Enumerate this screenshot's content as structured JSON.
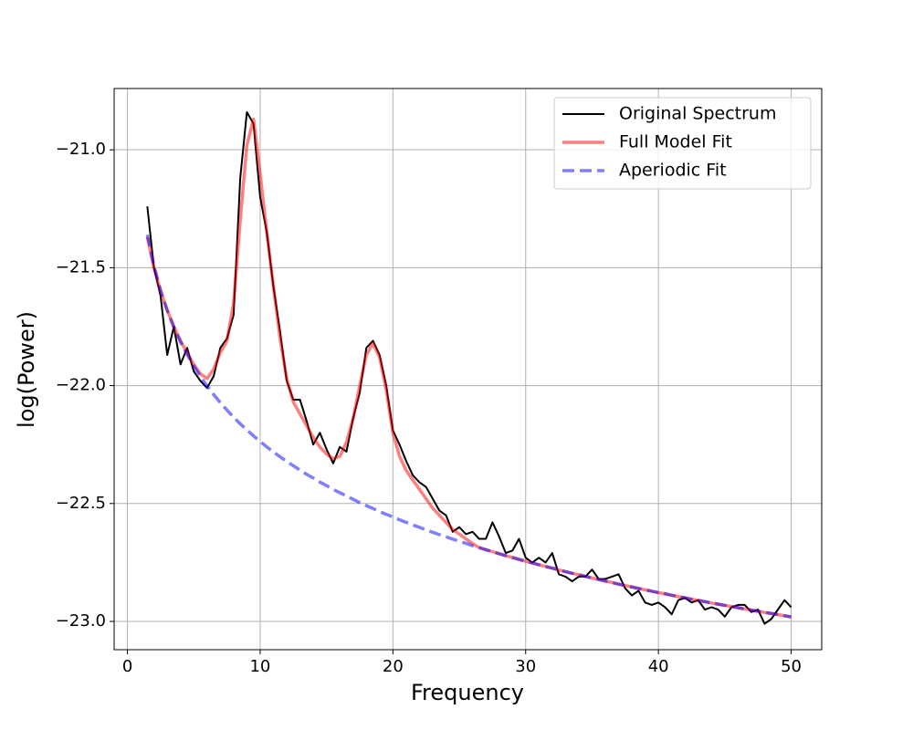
{
  "chart_data": {
    "type": "line",
    "xlabel": "Frequency",
    "ylabel": "log(Power)",
    "x": [
      1.5,
      2,
      2.5,
      3,
      3.5,
      4,
      4.5,
      5,
      5.5,
      6,
      6.5,
      7,
      7.5,
      8,
      8.5,
      9,
      9.5,
      10,
      10.5,
      11,
      11.5,
      12,
      12.5,
      13,
      13.5,
      14,
      14.5,
      15,
      15.5,
      16,
      16.5,
      17,
      17.5,
      18,
      18.5,
      19,
      19.5,
      20,
      20.5,
      21,
      21.5,
      22,
      22.5,
      23,
      23.5,
      24,
      24.5,
      25,
      25.5,
      26,
      26.5,
      27,
      27.5,
      28,
      28.5,
      29,
      29.5,
      30,
      30.5,
      31,
      31.5,
      32,
      32.5,
      33,
      33.5,
      34,
      34.5,
      35,
      35.5,
      36,
      36.5,
      37,
      37.5,
      38,
      38.5,
      39,
      39.5,
      40,
      40.5,
      41,
      41.5,
      42,
      42.5,
      43,
      43.5,
      44,
      44.5,
      45,
      45.5,
      46,
      46.5,
      47,
      47.5,
      48,
      48.5,
      49,
      49.5,
      50
    ],
    "series": [
      {
        "name": "Original Spectrum",
        "color": "#000000",
        "alpha": 1,
        "linewidth": 2,
        "linestyle": "solid",
        "values": [
          -21.24,
          -21.5,
          -21.62,
          -21.87,
          -21.75,
          -21.91,
          -21.84,
          -21.94,
          -21.98,
          -22.01,
          -21.96,
          -21.84,
          -21.8,
          -21.7,
          -21.12,
          -20.84,
          -20.89,
          -21.2,
          -21.35,
          -21.58,
          -21.77,
          -21.98,
          -22.06,
          -22.06,
          -22.15,
          -22.25,
          -22.2,
          -22.27,
          -22.33,
          -22.26,
          -22.28,
          -22.14,
          -22.03,
          -21.84,
          -21.81,
          -21.87,
          -22.0,
          -22.19,
          -22.25,
          -22.32,
          -22.38,
          -22.41,
          -22.43,
          -22.48,
          -22.53,
          -22.55,
          -22.62,
          -22.6,
          -22.63,
          -22.62,
          -22.65,
          -22.65,
          -22.58,
          -22.64,
          -22.71,
          -22.7,
          -22.65,
          -22.73,
          -22.75,
          -22.73,
          -22.75,
          -22.71,
          -22.8,
          -22.81,
          -22.83,
          -22.81,
          -22.81,
          -22.78,
          -22.82,
          -22.82,
          -22.81,
          -22.8,
          -22.86,
          -22.89,
          -22.87,
          -22.92,
          -22.93,
          -22.92,
          -22.94,
          -22.97,
          -22.91,
          -22.9,
          -22.92,
          -22.91,
          -22.95,
          -22.94,
          -22.95,
          -22.98,
          -22.94,
          -22.93,
          -22.93,
          -22.96,
          -22.95,
          -23.01,
          -22.99,
          -22.95,
          -22.91,
          -22.94
        ]
      },
      {
        "name": "Full Model Fit",
        "color": "#ff0000",
        "alpha": 0.5,
        "linewidth": 3.5,
        "linestyle": "solid",
        "values": [
          -21.37,
          -21.5,
          -21.6,
          -21.68,
          -21.75,
          -21.81,
          -21.86,
          -21.91,
          -21.95,
          -21.97,
          -21.93,
          -21.86,
          -21.81,
          -21.65,
          -21.3,
          -20.98,
          -20.87,
          -21.1,
          -21.35,
          -21.58,
          -21.8,
          -21.97,
          -22.07,
          -22.12,
          -22.17,
          -22.22,
          -22.26,
          -22.29,
          -22.31,
          -22.3,
          -22.24,
          -22.14,
          -22.0,
          -21.87,
          -21.82,
          -21.88,
          -22.02,
          -22.2,
          -22.3,
          -22.36,
          -22.4,
          -22.44,
          -22.48,
          -22.52,
          -22.55,
          -22.58,
          -22.61,
          -22.63,
          -22.65,
          -22.67,
          -22.687,
          -22.696,
          -22.704,
          -22.713,
          -22.721,
          -22.729,
          -22.737,
          -22.745,
          -22.752,
          -22.76,
          -22.767,
          -22.774,
          -22.782,
          -22.789,
          -22.796,
          -22.802,
          -22.809,
          -22.816,
          -22.822,
          -22.829,
          -22.835,
          -22.842,
          -22.848,
          -22.854,
          -22.86,
          -22.866,
          -22.872,
          -22.878,
          -22.883,
          -22.889,
          -22.895,
          -22.9,
          -22.906,
          -22.911,
          -22.916,
          -22.922,
          -22.927,
          -22.932,
          -22.937,
          -22.942,
          -22.947,
          -22.952,
          -22.957,
          -22.962,
          -22.966,
          -22.971,
          -22.976,
          -22.981
        ]
      },
      {
        "name": "Aperiodic Fit",
        "color": "#0000ff",
        "alpha": 0.5,
        "linewidth": 3.5,
        "linestyle": "dashed",
        "values": [
          -21.36,
          -21.493,
          -21.596,
          -21.681,
          -21.752,
          -21.814,
          -21.868,
          -21.917,
          -21.961,
          -22.001,
          -22.038,
          -22.072,
          -22.104,
          -22.134,
          -22.162,
          -22.188,
          -22.213,
          -22.237,
          -22.26,
          -22.281,
          -22.302,
          -22.321,
          -22.34,
          -22.358,
          -22.376,
          -22.392,
          -22.409,
          -22.424,
          -22.44,
          -22.454,
          -22.468,
          -22.482,
          -22.496,
          -22.509,
          -22.521,
          -22.534,
          -22.546,
          -22.557,
          -22.569,
          -22.58,
          -22.591,
          -22.601,
          -22.612,
          -22.622,
          -22.632,
          -22.641,
          -22.651,
          -22.66,
          -22.669,
          -22.679,
          -22.687,
          -22.696,
          -22.704,
          -22.713,
          -22.721,
          -22.729,
          -22.737,
          -22.745,
          -22.752,
          -22.76,
          -22.767,
          -22.774,
          -22.782,
          -22.789,
          -22.796,
          -22.802,
          -22.809,
          -22.816,
          -22.822,
          -22.829,
          -22.835,
          -22.842,
          -22.848,
          -22.854,
          -22.86,
          -22.866,
          -22.872,
          -22.878,
          -22.883,
          -22.889,
          -22.895,
          -22.9,
          -22.906,
          -22.911,
          -22.916,
          -22.922,
          -22.927,
          -22.932,
          -22.937,
          -22.942,
          -22.947,
          -22.952,
          -22.957,
          -22.962,
          -22.966,
          -22.971,
          -22.976,
          -22.981
        ]
      }
    ],
    "xlim": [
      -1,
      52.3
    ],
    "ylim": [
      -23.12,
      -20.74
    ],
    "xticks": [
      0,
      10,
      20,
      30,
      40,
      50
    ],
    "yticks": [
      {
        "value": -23,
        "label": "−23.0"
      },
      {
        "value": -22.5,
        "label": "−22.5"
      },
      {
        "value": -22,
        "label": "−22.0"
      },
      {
        "value": -21.5,
        "label": "−21.5"
      },
      {
        "value": -21,
        "label": "−21.0"
      }
    ],
    "grid": true,
    "legend": "upper right"
  }
}
